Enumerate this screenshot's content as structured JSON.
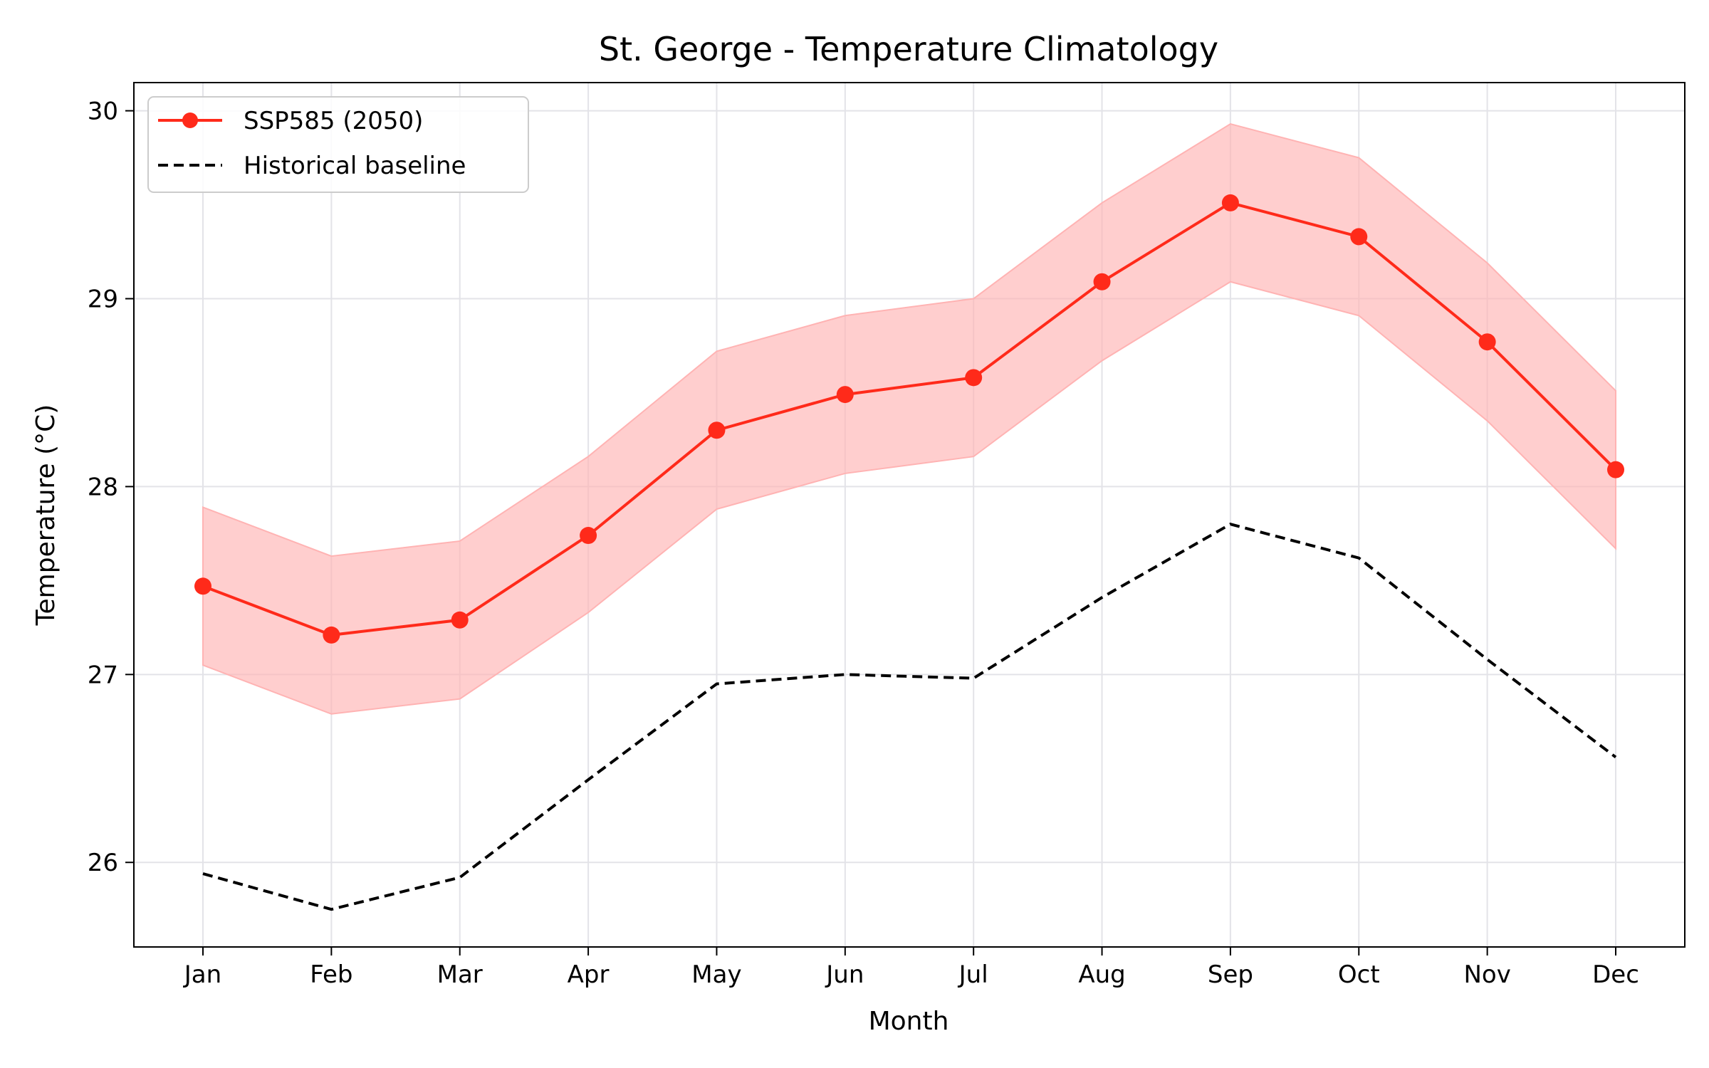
{
  "chart_data": {
    "type": "line",
    "title": "St. George - Temperature Climatology",
    "xlabel": "Month",
    "ylabel": "Temperature (°C)",
    "categories": [
      "Jan",
      "Feb",
      "Mar",
      "Apr",
      "May",
      "Jun",
      "Jul",
      "Aug",
      "Sep",
      "Oct",
      "Nov",
      "Dec"
    ],
    "ylim": [
      25.55,
      30.15
    ],
    "yticks": [
      26,
      27,
      28,
      29,
      30
    ],
    "grid": true,
    "legend_position": "upper-left",
    "series": [
      {
        "name": "SSP585 (2050)",
        "style": "solid-with-markers",
        "color": "#ff2a1a",
        "values": [
          27.47,
          27.21,
          27.29,
          27.74,
          28.3,
          28.49,
          28.58,
          29.09,
          29.51,
          29.33,
          28.77,
          28.09
        ],
        "band_lower": [
          27.05,
          26.79,
          26.87,
          27.33,
          27.88,
          28.07,
          28.16,
          28.67,
          29.09,
          28.91,
          28.35,
          27.67
        ],
        "band_upper": [
          27.89,
          27.63,
          27.71,
          28.16,
          28.72,
          28.91,
          29.0,
          29.51,
          29.93,
          29.75,
          29.19,
          28.51
        ],
        "band_color": "#ffb3b3"
      },
      {
        "name": "Historical baseline",
        "style": "dashed",
        "color": "#000000",
        "values": [
          25.94,
          25.75,
          25.92,
          26.44,
          26.95,
          27.0,
          26.98,
          27.41,
          27.8,
          27.62,
          27.08,
          26.56
        ]
      }
    ]
  }
}
